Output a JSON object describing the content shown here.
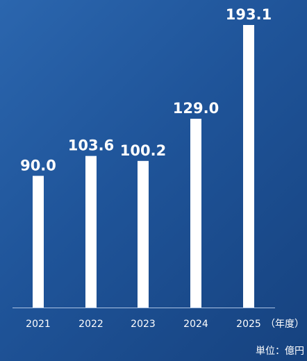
{
  "chart_data": {
    "type": "bar",
    "categories": [
      "2021",
      "2022",
      "2023",
      "2024",
      "2025"
    ],
    "values": [
      90.0,
      103.6,
      100.2,
      129.0,
      193.1
    ],
    "value_labels": [
      "90.0",
      "103.6",
      "100.2",
      "129.0",
      "193.1"
    ],
    "x_unit_label": "（年度）",
    "unit_label": "単位：億円",
    "title": "",
    "xlabel": "",
    "ylabel": "",
    "ylim": [
      0,
      193.1
    ],
    "grid": false,
    "legend": "none",
    "colors": {
      "bar": "#ffffff",
      "axis": "#a9c1e3",
      "text": "#ffffff",
      "background": "#1f5499"
    }
  }
}
